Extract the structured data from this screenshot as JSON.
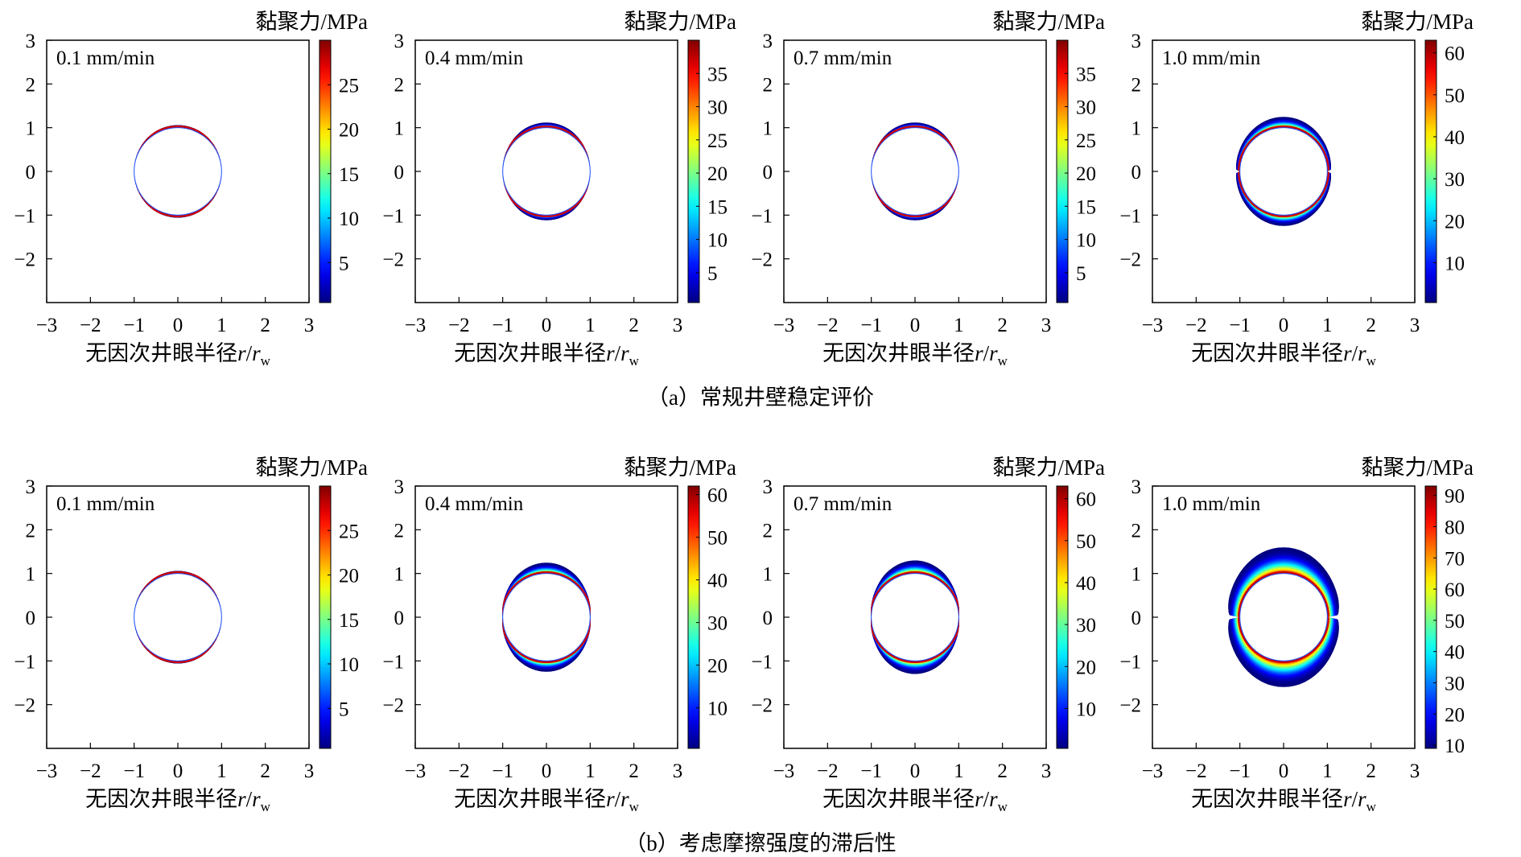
{
  "figure": {
    "caption_a": "（a）常规井壁稳定评价",
    "caption_b": "（b）考虑摩擦强度的滞后性",
    "colorbar_title": "黏聚力/MPa",
    "xlabel_text": "无因次井眼半径",
    "xlabel_var_r": "r",
    "xlabel_var_rw": "r",
    "xlabel_subscript": "w"
  },
  "chart_data": [
    {
      "type": "heatmap",
      "row": "a",
      "rate_label": "0.1 mm/min",
      "xlim": [
        -3,
        3
      ],
      "ylim": [
        -3,
        3
      ],
      "x_ticks": [
        -3,
        -2,
        -1,
        0,
        1,
        2,
        3
      ],
      "y_ticks": [
        -2,
        -1,
        0,
        1,
        2,
        3
      ],
      "colorbar_range": [
        0.5,
        30
      ],
      "colorbar_ticks": [
        5,
        10,
        15,
        20,
        25
      ],
      "outer_radius_x": 1.02,
      "outer_radius_y": 1.06,
      "max_cohesion": 30,
      "angular_spread": 1.0
    },
    {
      "type": "heatmap",
      "row": "a",
      "rate_label": "0.4 mm/min",
      "xlim": [
        -3,
        3
      ],
      "ylim": [
        -3,
        3
      ],
      "x_ticks": [
        -3,
        -2,
        -1,
        0,
        1,
        2,
        3
      ],
      "y_ticks": [
        -2,
        -1,
        0,
        1,
        2,
        3
      ],
      "colorbar_range": [
        0.5,
        40
      ],
      "colorbar_ticks": [
        5,
        10,
        15,
        20,
        25,
        30,
        35
      ],
      "outer_radius_x": 1.02,
      "outer_radius_y": 1.12,
      "max_cohesion": 40,
      "angular_spread": 1.25
    },
    {
      "type": "heatmap",
      "row": "a",
      "rate_label": "0.7 mm/min",
      "xlim": [
        -3,
        3
      ],
      "ylim": [
        -3,
        3
      ],
      "x_ticks": [
        -3,
        -2,
        -1,
        0,
        1,
        2,
        3
      ],
      "y_ticks": [
        -2,
        -1,
        0,
        1,
        2,
        3
      ],
      "colorbar_range": [
        0.5,
        40
      ],
      "colorbar_ticks": [
        5,
        10,
        15,
        20,
        25,
        30,
        35
      ],
      "outer_radius_x": 1.02,
      "outer_radius_y": 1.12,
      "max_cohesion": 40,
      "angular_spread": 1.25
    },
    {
      "type": "heatmap",
      "row": "a",
      "rate_label": "1.0 mm/min",
      "xlim": [
        -3,
        3
      ],
      "ylim": [
        -3,
        3
      ],
      "x_ticks": [
        -3,
        -2,
        -1,
        0,
        1,
        2,
        3
      ],
      "y_ticks": [
        -2,
        -1,
        0,
        1,
        2,
        3
      ],
      "colorbar_range": [
        0.5,
        63
      ],
      "colorbar_ticks": [
        10,
        20,
        30,
        40,
        50,
        60
      ],
      "outer_radius_x": 1.1,
      "outer_radius_y": 1.25,
      "max_cohesion": 63,
      "angular_spread": 9
    },
    {
      "type": "heatmap",
      "row": "b",
      "rate_label": "0.1 mm/min",
      "xlim": [
        -3,
        3
      ],
      "ylim": [
        -3,
        3
      ],
      "x_ticks": [
        -3,
        -2,
        -1,
        0,
        1,
        2,
        3
      ],
      "y_ticks": [
        -2,
        -1,
        0,
        1,
        2,
        3
      ],
      "colorbar_range": [
        0.5,
        30
      ],
      "colorbar_ticks": [
        5,
        10,
        15,
        20,
        25
      ],
      "outer_radius_x": 1.02,
      "outer_radius_y": 1.06,
      "max_cohesion": 30,
      "angular_spread": 1.0
    },
    {
      "type": "heatmap",
      "row": "b",
      "rate_label": "0.4 mm/min",
      "xlim": [
        -3,
        3
      ],
      "ylim": [
        -3,
        3
      ],
      "x_ticks": [
        -3,
        -2,
        -1,
        0,
        1,
        2,
        3
      ],
      "y_ticks": [
        -2,
        -1,
        0,
        1,
        2,
        3
      ],
      "colorbar_range": [
        0.5,
        62
      ],
      "colorbar_ticks": [
        10,
        20,
        30,
        40,
        50,
        60
      ],
      "outer_radius_x": 1.05,
      "outer_radius_y": 1.25,
      "max_cohesion": 62,
      "angular_spread": 2.0
    },
    {
      "type": "heatmap",
      "row": "b",
      "rate_label": "0.7 mm/min",
      "xlim": [
        -3,
        3
      ],
      "ylim": [
        -3,
        3
      ],
      "x_ticks": [
        -3,
        -2,
        -1,
        0,
        1,
        2,
        3
      ],
      "y_ticks": [
        -2,
        -1,
        0,
        1,
        2,
        3
      ],
      "colorbar_range": [
        0.5,
        63
      ],
      "colorbar_ticks": [
        10,
        20,
        30,
        40,
        50,
        60
      ],
      "outer_radius_x": 1.05,
      "outer_radius_y": 1.3,
      "max_cohesion": 63,
      "angular_spread": 2.0
    },
    {
      "type": "heatmap",
      "row": "b",
      "rate_label": "1.0 mm/min",
      "xlim": [
        -3,
        3
      ],
      "ylim": [
        -3,
        3
      ],
      "x_ticks": [
        -3,
        -2,
        -1,
        0,
        1,
        2,
        3
      ],
      "y_ticks": [
        -2,
        -1,
        0,
        1,
        2,
        3
      ],
      "colorbar_range": [
        9,
        93
      ],
      "colorbar_ticks": [
        10,
        20,
        30,
        40,
        50,
        60,
        70,
        80,
        90
      ],
      "outer_radius_x": 1.3,
      "outer_radius_y": 1.6,
      "max_cohesion": 93,
      "angular_spread": 9
    }
  ]
}
